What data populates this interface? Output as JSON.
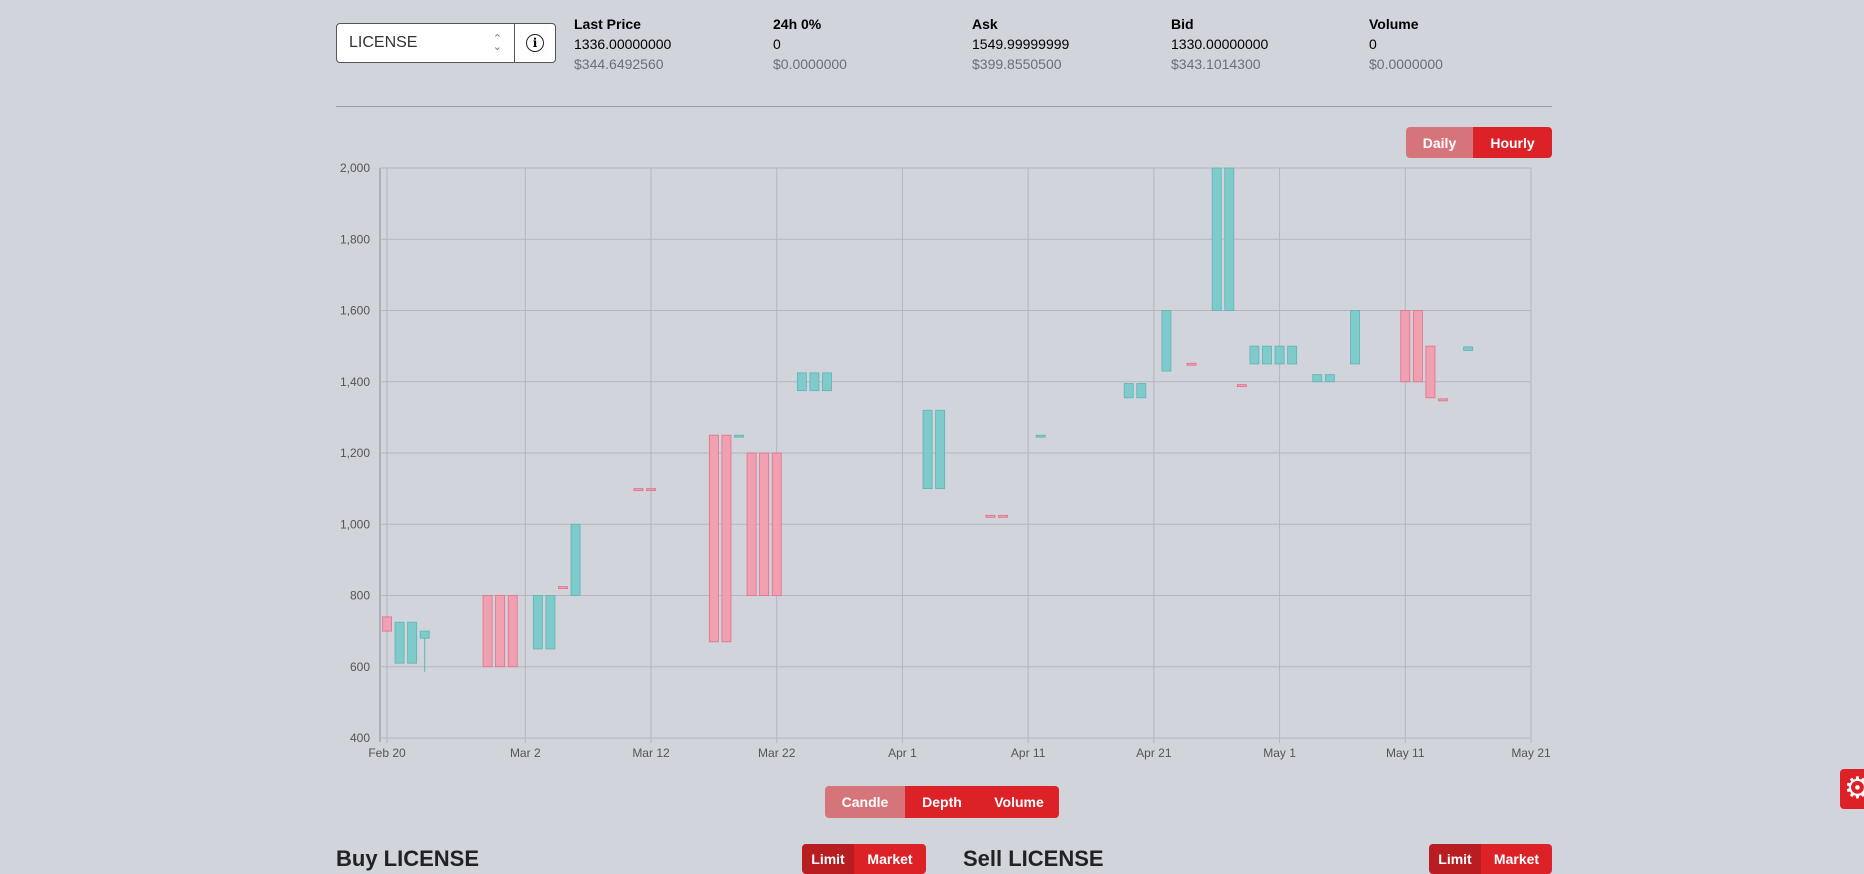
{
  "market": {
    "selected": "LICENSE",
    "info_icon": "info-icon"
  },
  "stats": [
    {
      "label": "Last Price",
      "value": "1336.00000000",
      "usd": "$344.6492560"
    },
    {
      "label": "24h 0%",
      "value": "0",
      "usd": "$0.0000000"
    },
    {
      "label": "Ask",
      "value": "1549.99999999",
      "usd": "$399.8550500"
    },
    {
      "label": "Bid",
      "value": "1330.00000000",
      "usd": "$343.1014300"
    },
    {
      "label": "Volume",
      "value": "0",
      "usd": "$0.0000000"
    }
  ],
  "interval": {
    "daily": "Daily",
    "hourly": "Hourly",
    "selected": "Hourly"
  },
  "chart_tabs": {
    "candle": "Candle",
    "depth": "Depth",
    "volume": "Volume",
    "selected": "Candle"
  },
  "buy_section": {
    "title": "Buy LICENSE",
    "limit": "Limit",
    "market": "Market"
  },
  "sell_section": {
    "title": "Sell LICENSE",
    "limit": "Limit",
    "market": "Market"
  },
  "colors": {
    "up": "#7ecbcc",
    "down": "#f0a0b0",
    "accent": "#dc2127",
    "accent_dim": "#d57579"
  },
  "chart_data": {
    "type": "candlestick",
    "xlabel": "",
    "ylabel": "",
    "ylim": [
      400,
      2000
    ],
    "xlim": [
      "2020-02-20",
      "2020-05-21"
    ],
    "yticks": [
      400,
      600,
      800,
      1000,
      1200,
      1400,
      1600,
      1800,
      2000
    ],
    "yticklabels": [
      "400",
      "600",
      "800",
      "1,000",
      "1,200",
      "1,400",
      "1,600",
      "1,800",
      "2,000"
    ],
    "xticks": [
      "2020-02-20",
      "2020-03-02",
      "2020-03-12",
      "2020-03-22",
      "2020-04-01",
      "2020-04-11",
      "2020-04-21",
      "2020-05-01",
      "2020-05-11",
      "2020-05-21"
    ],
    "xticklabels": [
      "Feb 20",
      "Mar 2",
      "Mar 12",
      "Mar 22",
      "Apr 1",
      "Apr 11",
      "Apr 21",
      "May 1",
      "May 11",
      "May 21"
    ],
    "grid": true,
    "candles": [
      {
        "date": "2020-02-20",
        "open": 740,
        "close": 700,
        "high": 740,
        "low": 700
      },
      {
        "date": "2020-02-21",
        "open": 610,
        "close": 725,
        "high": 725,
        "low": 610
      },
      {
        "date": "2020-02-22",
        "open": 610,
        "close": 725,
        "high": 725,
        "low": 610
      },
      {
        "date": "2020-02-23",
        "open": 680,
        "close": 700,
        "high": 700,
        "low": 585
      },
      {
        "date": "2020-02-28",
        "open": 800,
        "close": 600,
        "high": 800,
        "low": 600
      },
      {
        "date": "2020-02-29",
        "open": 800,
        "close": 600,
        "high": 800,
        "low": 600
      },
      {
        "date": "2020-03-01",
        "open": 800,
        "close": 600,
        "high": 800,
        "low": 600
      },
      {
        "date": "2020-03-03",
        "open": 650,
        "close": 800,
        "high": 800,
        "low": 650
      },
      {
        "date": "2020-03-04",
        "open": 650,
        "close": 800,
        "high": 800,
        "low": 650
      },
      {
        "date": "2020-03-05",
        "open": 825,
        "close": 820,
        "high": 825,
        "low": 820
      },
      {
        "date": "2020-03-06",
        "open": 800,
        "close": 1000,
        "high": 1000,
        "low": 800
      },
      {
        "date": "2020-03-11",
        "open": 1100,
        "close": 1095,
        "high": 1100,
        "low": 1095
      },
      {
        "date": "2020-03-12",
        "open": 1100,
        "close": 1095,
        "high": 1100,
        "low": 1095
      },
      {
        "date": "2020-03-17",
        "open": 1250,
        "close": 670,
        "high": 1250,
        "low": 670
      },
      {
        "date": "2020-03-18",
        "open": 1250,
        "close": 670,
        "high": 1250,
        "low": 670
      },
      {
        "date": "2020-03-19",
        "open": 1245,
        "close": 1250,
        "high": 1250,
        "low": 1245
      },
      {
        "date": "2020-03-20",
        "open": 1200,
        "close": 800,
        "high": 1200,
        "low": 800
      },
      {
        "date": "2020-03-21",
        "open": 1200,
        "close": 800,
        "high": 1200,
        "low": 800
      },
      {
        "date": "2020-03-22",
        "open": 1200,
        "close": 800,
        "high": 1200,
        "low": 800
      },
      {
        "date": "2020-03-24",
        "open": 1375,
        "close": 1425,
        "high": 1425,
        "low": 1375
      },
      {
        "date": "2020-03-25",
        "open": 1375,
        "close": 1425,
        "high": 1425,
        "low": 1375
      },
      {
        "date": "2020-03-26",
        "open": 1375,
        "close": 1425,
        "high": 1425,
        "low": 1375
      },
      {
        "date": "2020-04-03",
        "open": 1100,
        "close": 1320,
        "high": 1320,
        "low": 1100
      },
      {
        "date": "2020-04-04",
        "open": 1100,
        "close": 1320,
        "high": 1320,
        "low": 1100
      },
      {
        "date": "2020-04-08",
        "open": 1025,
        "close": 1020,
        "high": 1025,
        "low": 1020
      },
      {
        "date": "2020-04-09",
        "open": 1025,
        "close": 1020,
        "high": 1025,
        "low": 1020
      },
      {
        "date": "2020-04-12",
        "open": 1245,
        "close": 1250,
        "high": 1250,
        "low": 1245
      },
      {
        "date": "2020-04-19",
        "open": 1355,
        "close": 1395,
        "high": 1395,
        "low": 1355
      },
      {
        "date": "2020-04-20",
        "open": 1355,
        "close": 1395,
        "high": 1395,
        "low": 1355
      },
      {
        "date": "2020-04-22",
        "open": 1430,
        "close": 1600,
        "high": 1600,
        "low": 1430
      },
      {
        "date": "2020-04-24",
        "open": 1452,
        "close": 1448,
        "high": 1452,
        "low": 1448
      },
      {
        "date": "2020-04-26",
        "open": 1600,
        "close": 2000,
        "high": 2000,
        "low": 1600
      },
      {
        "date": "2020-04-27",
        "open": 1600,
        "close": 2000,
        "high": 2000,
        "low": 1600
      },
      {
        "date": "2020-04-28",
        "open": 1392,
        "close": 1388,
        "high": 1392,
        "low": 1388
      },
      {
        "date": "2020-04-29",
        "open": 1450,
        "close": 1500,
        "high": 1500,
        "low": 1450
      },
      {
        "date": "2020-04-30",
        "open": 1450,
        "close": 1500,
        "high": 1500,
        "low": 1450
      },
      {
        "date": "2020-05-01",
        "open": 1450,
        "close": 1500,
        "high": 1500,
        "low": 1450
      },
      {
        "date": "2020-05-02",
        "open": 1450,
        "close": 1500,
        "high": 1500,
        "low": 1450
      },
      {
        "date": "2020-05-04",
        "open": 1400,
        "close": 1420,
        "high": 1420,
        "low": 1400
      },
      {
        "date": "2020-05-05",
        "open": 1400,
        "close": 1420,
        "high": 1420,
        "low": 1400
      },
      {
        "date": "2020-05-07",
        "open": 1450,
        "close": 1600,
        "high": 1600,
        "low": 1450
      },
      {
        "date": "2020-05-11",
        "open": 1600,
        "close": 1400,
        "high": 1600,
        "low": 1400
      },
      {
        "date": "2020-05-12",
        "open": 1600,
        "close": 1400,
        "high": 1600,
        "low": 1400
      },
      {
        "date": "2020-05-13",
        "open": 1500,
        "close": 1355,
        "high": 1500,
        "low": 1355
      },
      {
        "date": "2020-05-14",
        "open": 1352,
        "close": 1348,
        "high": 1352,
        "low": 1348
      },
      {
        "date": "2020-05-16",
        "open": 1488,
        "close": 1498,
        "high": 1498,
        "low": 1488
      }
    ]
  }
}
